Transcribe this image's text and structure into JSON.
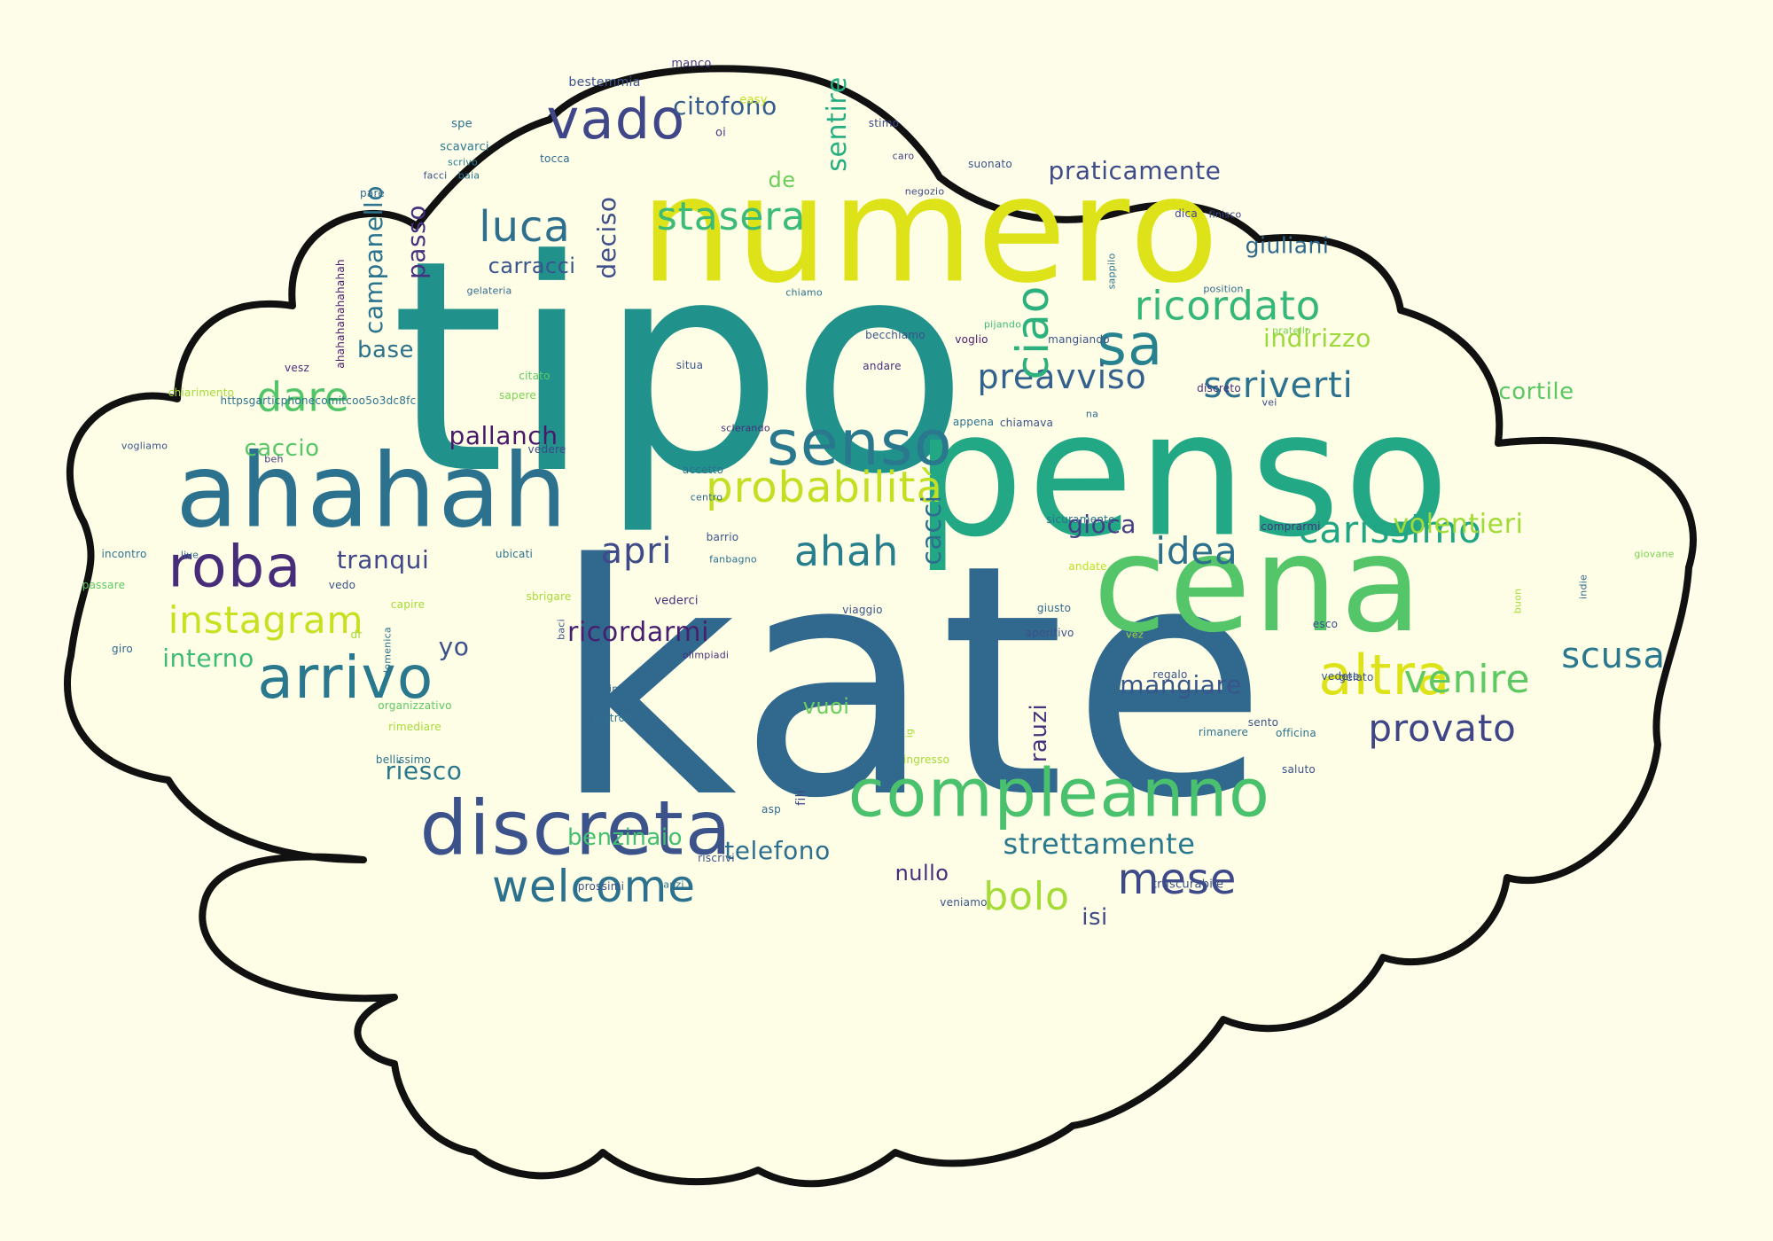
{
  "colors": {
    "background": "#fdfde9",
    "cloud_fill": "#fefee6",
    "cloud_outline": "#111111"
  },
  "words": [
    {
      "text": "kate",
      "color": "#31688e"
    },
    {
      "text": "tipo",
      "color": "#21918c"
    },
    {
      "text": "penso",
      "color": "#22a884"
    },
    {
      "text": "numero",
      "color": "#dde318"
    },
    {
      "text": "cena",
      "color": "#54c568"
    },
    {
      "text": "ahahah",
      "color": "#2c728e"
    },
    {
      "text": "discreta",
      "color": "#3b528b"
    },
    {
      "text": "compleanno",
      "color": "#4ac16d"
    },
    {
      "text": "senso",
      "color": "#2a788e"
    },
    {
      "text": "vado",
      "color": "#3f4788"
    },
    {
      "text": "roba",
      "color": "#472c7a"
    },
    {
      "text": "arrivo",
      "color": "#2a788e"
    },
    {
      "text": "altra",
      "color": "#dde318"
    },
    {
      "text": "probabilità",
      "color": "#c2df23"
    },
    {
      "text": "ricordato",
      "color": "#35b779"
    },
    {
      "text": "sa",
      "color": "#26828e"
    },
    {
      "text": "welcome",
      "color": "#2c728e"
    },
    {
      "text": "stasera",
      "color": "#3bbb75"
    },
    {
      "text": "instagram",
      "color": "#c8e020"
    },
    {
      "text": "scusa",
      "color": "#2a788e"
    },
    {
      "text": "mese",
      "color": "#3e4989"
    },
    {
      "text": "carissimo",
      "color": "#21a685"
    },
    {
      "text": "provato",
      "color": "#404588"
    },
    {
      "text": "venire",
      "color": "#5ec962"
    },
    {
      "text": "luca",
      "color": "#2e6f8e"
    },
    {
      "text": "scriverti",
      "color": "#2c728e"
    },
    {
      "text": "preavviso",
      "color": "#34618d"
    },
    {
      "text": "dare",
      "color": "#52c569"
    },
    {
      "text": "ahah",
      "color": "#277f8e"
    },
    {
      "text": "idea",
      "color": "#2d708e"
    },
    {
      "text": "bolo",
      "color": "#a5db36"
    },
    {
      "text": "apri",
      "color": "#3e4a89"
    },
    {
      "text": "citofono",
      "color": "#365c8d"
    },
    {
      "text": "ciao",
      "color": "#2cb17e"
    },
    {
      "text": "volentieri",
      "color": "#a2da37"
    },
    {
      "text": "benzinaio",
      "color": "#43bf71"
    },
    {
      "text": "pallanch",
      "color": "#48186a"
    },
    {
      "text": "strettamente",
      "color": "#2a788e"
    },
    {
      "text": "telefono",
      "color": "#2e6e8e"
    },
    {
      "text": "tranqui",
      "color": "#404688"
    },
    {
      "text": "praticamente",
      "color": "#3e4c8a"
    },
    {
      "text": "ricordarmi",
      "color": "#481f70"
    },
    {
      "text": "carracci",
      "color": "#3a548c"
    },
    {
      "text": "giuliani",
      "color": "#31688e"
    },
    {
      "text": "mangiare",
      "color": "#39568c"
    },
    {
      "text": "indirizzo",
      "color": "#9dd93b"
    },
    {
      "text": "gioca",
      "color": "#433e85"
    },
    {
      "text": "riesco",
      "color": "#2a788e"
    },
    {
      "text": "campanello",
      "color": "#2c738e"
    },
    {
      "text": "interno",
      "color": "#3fbc73"
    },
    {
      "text": "passo",
      "color": "#46327e"
    },
    {
      "text": "deciso",
      "color": "#3d4e8a"
    },
    {
      "text": "sentire",
      "color": "#26ad81"
    },
    {
      "text": "cacci",
      "color": "#2e6f8e"
    },
    {
      "text": "base",
      "color": "#2c728e"
    },
    {
      "text": "cortile",
      "color": "#5cc863"
    },
    {
      "text": "caccio",
      "color": "#56c667"
    },
    {
      "text": "yo",
      "color": "#3b518b"
    },
    {
      "text": "vuoi",
      "color": "#6ccd5a"
    },
    {
      "text": "nullo",
      "color": "#472d7b"
    },
    {
      "text": "rauzi",
      "color": "#46337e"
    },
    {
      "text": "isi",
      "color": "#3f4889"
    },
    {
      "text": "de",
      "color": "#6ccd5a"
    },
    {
      "text": "fili",
      "color": "#3e4989"
    },
    {
      "text": "ahahahahahahahah",
      "color": "#481a6c"
    },
    {
      "text": "httpsgarticphonecomitcoo5o3dc8fc",
      "color": "#2c728e"
    },
    {
      "text": "manco",
      "color": "#443983"
    },
    {
      "text": "bestemmia",
      "color": "#3b528b"
    },
    {
      "text": "easy",
      "color": "#c2df23"
    },
    {
      "text": "spe",
      "color": "#2c728e"
    },
    {
      "text": "oi",
      "color": "#443a83"
    },
    {
      "text": "stimo",
      "color": "#3e4989"
    },
    {
      "text": "scavarci",
      "color": "#2a788e"
    },
    {
      "text": "scrivo",
      "color": "#287c8e"
    },
    {
      "text": "tocca",
      "color": "#31688e"
    },
    {
      "text": "caro",
      "color": "#433e85"
    },
    {
      "text": "suonato",
      "color": "#3b528b"
    },
    {
      "text": "facci",
      "color": "#3b528b"
    },
    {
      "text": "baia",
      "color": "#2c728e"
    },
    {
      "text": "pare",
      "color": "#31688e"
    },
    {
      "text": "negozio",
      "color": "#3e4989"
    },
    {
      "text": "dica",
      "color": "#404688"
    },
    {
      "text": "finisco",
      "color": "#404688"
    },
    {
      "text": "sappilo",
      "color": "#2c728e"
    },
    {
      "text": "position",
      "color": "#31688e"
    },
    {
      "text": "gelateria",
      "color": "#31688e"
    },
    {
      "text": "chiamo",
      "color": "#2c728e"
    },
    {
      "text": "pijando",
      "color": "#3fbc73"
    },
    {
      "text": "pratello",
      "color": "#7ad151"
    },
    {
      "text": "becchiamo",
      "color": "#3b528b"
    },
    {
      "text": "voglio",
      "color": "#48186a"
    },
    {
      "text": "mangiando",
      "color": "#3b528b"
    },
    {
      "text": "andare",
      "color": "#472d7b"
    },
    {
      "text": "situa",
      "color": "#3b528b"
    },
    {
      "text": "vesz",
      "color": "#472d7b"
    },
    {
      "text": "citato",
      "color": "#5ec962"
    },
    {
      "text": "sapere",
      "color": "#7ad151"
    },
    {
      "text": "chiarimento",
      "color": "#a5db36"
    },
    {
      "text": "vei",
      "color": "#3e4989"
    },
    {
      "text": "discreto",
      "color": "#472d7b"
    },
    {
      "text": "appena",
      "color": "#2c728e"
    },
    {
      "text": "chiamava",
      "color": "#3b528b"
    },
    {
      "text": "sclerando",
      "color": "#472d7b"
    },
    {
      "text": "na",
      "color": "#31688e"
    },
    {
      "text": "vogliamo",
      "color": "#3b528b"
    },
    {
      "text": "vedere",
      "color": "#3e4989"
    },
    {
      "text": "beh",
      "color": "#443983"
    },
    {
      "text": "accetto",
      "color": "#2c728e"
    },
    {
      "text": "centro",
      "color": "#31688e"
    },
    {
      "text": "sicuramente",
      "color": "#2c728e"
    },
    {
      "text": "barrio",
      "color": "#3b528b"
    },
    {
      "text": "comprarmi",
      "color": "#46327e"
    },
    {
      "text": "incontro",
      "color": "#2c728e"
    },
    {
      "text": "live",
      "color": "#31688e"
    },
    {
      "text": "ubicati",
      "color": "#2c728e"
    },
    {
      "text": "fanbagno",
      "color": "#2c728e"
    },
    {
      "text": "giovane",
      "color": "#7ad151"
    },
    {
      "text": "passare",
      "color": "#5ec962"
    },
    {
      "text": "sbrigare",
      "color": "#a5db36"
    },
    {
      "text": "andate",
      "color": "#bddf26"
    },
    {
      "text": "indie",
      "color": "#31688e"
    },
    {
      "text": "vedo",
      "color": "#3b528b"
    },
    {
      "text": "vederci",
      "color": "#472d7b"
    },
    {
      "text": "viaggio",
      "color": "#3b528b"
    },
    {
      "text": "giusto",
      "color": "#31688e"
    },
    {
      "text": "capire",
      "color": "#a5db36"
    },
    {
      "text": "aperitivo",
      "color": "#3b528b"
    },
    {
      "text": "buon",
      "color": "#a5db36"
    },
    {
      "text": "esco",
      "color": "#3b528b"
    },
    {
      "text": "giro",
      "color": "#31688e"
    },
    {
      "text": "baci",
      "color": "#3b528b"
    },
    {
      "text": "vez",
      "color": "#a5db36"
    },
    {
      "text": "dr",
      "color": "#a5db36"
    },
    {
      "text": "domenica",
      "color": "#2c728e"
    },
    {
      "text": "olimpiadi",
      "color": "#472d7b"
    },
    {
      "text": "regalo",
      "color": "#3b528b"
    },
    {
      "text": "vedete",
      "color": "#3b528b"
    },
    {
      "text": "gelato",
      "color": "#3b528b"
    },
    {
      "text": "sinistra",
      "color": "#31688e"
    },
    {
      "text": "bistrot",
      "color": "#2c728e"
    },
    {
      "text": "ig",
      "color": "#a5db36"
    },
    {
      "text": "organizzativo",
      "color": "#5ec962"
    },
    {
      "text": "rimanere",
      "color": "#2c728e"
    },
    {
      "text": "officina",
      "color": "#2c728e"
    },
    {
      "text": "sento",
      "color": "#3b528b"
    },
    {
      "text": "rimediare",
      "color": "#a5db36"
    },
    {
      "text": "ingresso",
      "color": "#a5db36"
    },
    {
      "text": "bellissimo",
      "color": "#2c728e"
    },
    {
      "text": "saluto",
      "color": "#3b528b"
    },
    {
      "text": "asp",
      "color": "#31688e"
    },
    {
      "text": "riscrivi",
      "color": "#3b528b"
    },
    {
      "text": "trascurabile",
      "color": "#3b528b"
    },
    {
      "text": "prossimi",
      "color": "#3b528b"
    },
    {
      "text": "anzi",
      "color": "#2c728e"
    },
    {
      "text": "veniamo",
      "color": "#3b528b"
    }
  ]
}
